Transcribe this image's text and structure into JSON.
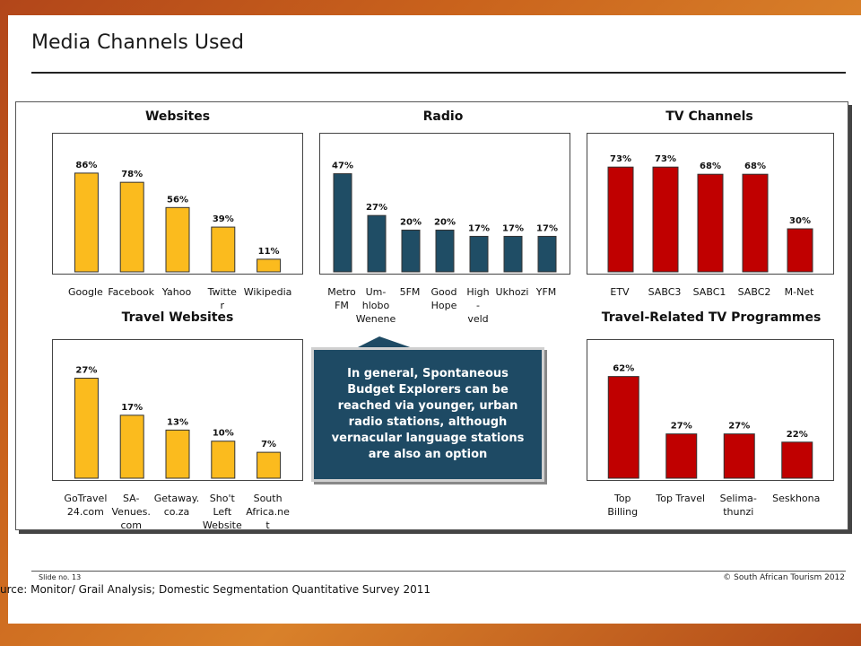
{
  "title": "Media Channels Used",
  "callout": "In general, Spontaneous Budget Explorers can be reached via younger, urban radio stations, although vernacular language stations are also an option",
  "footer": {
    "slide_no": "Slide no. 13",
    "copyright": "© South African Tourism 2012",
    "source": "urce: Monitor/ Grail Analysis; Domestic Segmentation Quantitative Survey 2011"
  },
  "colors": {
    "yellow": "#fbbb1e",
    "navy": "#1f4d65",
    "red": "#c00000"
  },
  "chart_data": [
    {
      "type": "bar",
      "title": "Websites",
      "categories": [
        "Google",
        "Facebook",
        "Yahoo",
        "Twitte\nr",
        "Wikipedia"
      ],
      "values": [
        86,
        78,
        56,
        39,
        11
      ],
      "value_labels": [
        "86%",
        "78%",
        "56%",
        "39%",
        "11%"
      ],
      "ylim": [
        0,
        100
      ],
      "color": "#fbbb1e"
    },
    {
      "type": "bar",
      "title": "Radio",
      "categories": [
        "Metro\nFM",
        "Um-\nhlobo\nWenene",
        "5FM",
        "Good\nHope",
        "High\n-\nveld",
        "Ukhozi",
        "YFM"
      ],
      "values": [
        47,
        27,
        20,
        20,
        17,
        17,
        17
      ],
      "value_labels": [
        "47%",
        "27%",
        "20%",
        "20%",
        "17%",
        "17%",
        "17%"
      ],
      "ylim": [
        0,
        55
      ],
      "color": "#1f4d65"
    },
    {
      "type": "bar",
      "title": "TV Channels",
      "categories": [
        "ETV",
        "SABC3",
        "SABC1",
        "SABC2",
        "M-Net"
      ],
      "values": [
        73,
        73,
        68,
        68,
        30
      ],
      "value_labels": [
        "73%",
        "73%",
        "68%",
        "68%",
        "30%"
      ],
      "ylim": [
        0,
        80
      ],
      "color": "#c00000"
    },
    {
      "type": "bar",
      "title": "Travel Websites",
      "categories": [
        "GoTravel\n24.com",
        "SA-\nVenues.\ncom",
        "Getaway.\nco.za",
        "Sho't\nLeft\nWebsite",
        "South\nAfrica.ne\nt"
      ],
      "values": [
        27,
        17,
        13,
        10,
        7
      ],
      "value_labels": [
        "27%",
        "17%",
        "13%",
        "10%",
        "7%"
      ],
      "ylim": [
        0,
        31
      ],
      "color": "#fbbb1e"
    },
    {
      "type": "bar",
      "title": "Travel-Related TV Programmes",
      "categories": [
        "Top\nBilling",
        "Top Travel",
        "Selima-\nthunzi",
        "Seskhona"
      ],
      "values": [
        62,
        27,
        27,
        22
      ],
      "value_labels": [
        "62%",
        "27%",
        "27%",
        "22%"
      ],
      "ylim": [
        0,
        70
      ],
      "color": "#c00000"
    }
  ]
}
